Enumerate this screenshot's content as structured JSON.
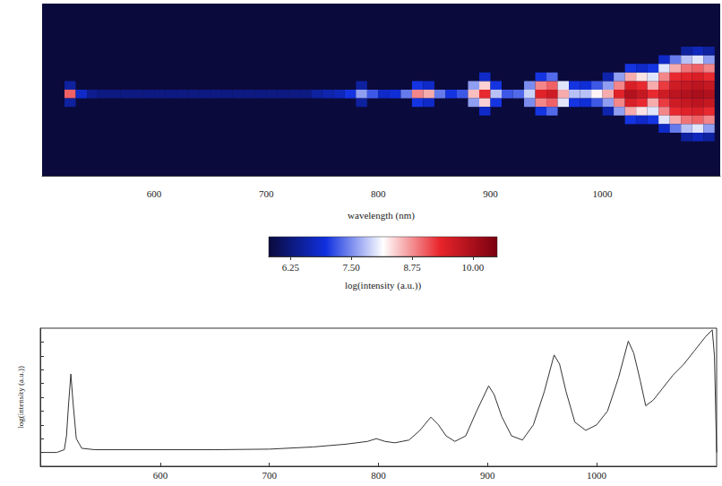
{
  "chart_data": [
    {
      "type": "heatmap",
      "x_label": "wavelength (nm)",
      "xlim": [
        500,
        1105
      ],
      "xticks": [
        600,
        700,
        800,
        900,
        1000
      ],
      "ylim": [
        0,
        20
      ],
      "tick_labels": "x",
      "colorbar_label": "log(intensity (a.u.))",
      "colorbar_range": [
        5.8,
        10.5
      ],
      "colorbar_ticks": [
        6.25,
        {
          "value": 7.5,
          "label": "7.50"
        },
        8.75,
        {
          "value": 10,
          "label": "10.00"
        }
      ],
      "cells": [
        [
          525,
          9.5,
          9.0
        ],
        [
          535,
          9.5,
          6.8
        ],
        [
          545,
          9.5,
          6.4
        ],
        [
          555,
          9.5,
          6.3
        ],
        [
          565,
          9.5,
          6.3
        ],
        [
          575,
          9.5,
          6.3
        ],
        [
          585,
          9.5,
          6.3
        ],
        [
          595,
          9.5,
          6.3
        ],
        [
          605,
          9.5,
          6.3
        ],
        [
          615,
          9.5,
          6.3
        ],
        [
          625,
          9.5,
          6.3
        ],
        [
          635,
          9.5,
          6.3
        ],
        [
          645,
          9.5,
          6.3
        ],
        [
          655,
          9.5,
          6.3
        ],
        [
          665,
          9.5,
          6.3
        ],
        [
          675,
          9.5,
          6.3
        ],
        [
          685,
          9.5,
          6.3
        ],
        [
          695,
          9.5,
          6.3
        ],
        [
          705,
          9.5,
          6.3
        ],
        [
          715,
          9.5,
          6.3
        ],
        [
          725,
          9.5,
          6.3
        ],
        [
          735,
          9.5,
          6.3
        ],
        [
          745,
          9.5,
          6.5
        ],
        [
          755,
          9.5,
          6.6
        ],
        [
          765,
          9.5,
          6.7
        ],
        [
          775,
          9.5,
          7.0
        ],
        [
          785,
          9.5,
          7.6
        ],
        [
          795,
          9.5,
          7.2
        ],
        [
          805,
          9.5,
          6.8
        ],
        [
          815,
          9.5,
          6.9
        ],
        [
          825,
          9.5,
          7.4
        ],
        [
          835,
          9.5,
          8.8
        ],
        [
          845,
          9.5,
          8.6
        ],
        [
          855,
          9.5,
          7.4
        ],
        [
          865,
          9.5,
          7.0
        ],
        [
          875,
          9.5,
          7.2
        ],
        [
          885,
          9.5,
          8.5
        ],
        [
          895,
          9.5,
          9.3
        ],
        [
          905,
          9.5,
          7.8
        ],
        [
          915,
          9.5,
          7.2
        ],
        [
          925,
          9.5,
          7.3
        ],
        [
          935,
          9.5,
          7.9
        ],
        [
          945,
          9.5,
          9.4
        ],
        [
          955,
          9.5,
          9.6
        ],
        [
          965,
          9.5,
          8.6
        ],
        [
          975,
          9.5,
          7.8
        ],
        [
          985,
          9.5,
          7.8
        ],
        [
          995,
          9.5,
          8.2
        ],
        [
          1005,
          9.5,
          8.6
        ],
        [
          1015,
          9.5,
          9.4
        ],
        [
          1025,
          9.5,
          9.9
        ],
        [
          1035,
          9.5,
          9.7
        ],
        [
          1045,
          9.5,
          9.3
        ],
        [
          1055,
          9.5,
          9.6
        ],
        [
          1065,
          9.5,
          9.8
        ],
        [
          1075,
          9.5,
          9.9
        ],
        [
          1085,
          9.5,
          10.0
        ],
        [
          1095,
          9.5,
          9.9
        ],
        [
          525,
          8.5,
          6.5
        ],
        [
          785,
          8.5,
          6.5
        ],
        [
          835,
          8.5,
          7.0
        ],
        [
          845,
          8.5,
          6.8
        ],
        [
          885,
          8.5,
          7.6
        ],
        [
          895,
          8.5,
          8.4
        ],
        [
          905,
          8.5,
          7.0
        ],
        [
          935,
          8.5,
          7.5
        ],
        [
          945,
          8.5,
          8.8
        ],
        [
          955,
          8.5,
          9.0
        ],
        [
          965,
          8.5,
          8.0
        ],
        [
          975,
          8.5,
          7.0
        ],
        [
          985,
          8.5,
          6.9
        ],
        [
          995,
          8.5,
          7.2
        ],
        [
          1005,
          8.5,
          7.6
        ],
        [
          1015,
          8.5,
          8.8
        ],
        [
          1025,
          8.5,
          9.5
        ],
        [
          1035,
          8.5,
          9.3
        ],
        [
          1045,
          8.5,
          8.6
        ],
        [
          1055,
          8.5,
          9.2
        ],
        [
          1065,
          8.5,
          9.6
        ],
        [
          1075,
          8.5,
          9.7
        ],
        [
          1085,
          8.5,
          9.8
        ],
        [
          1095,
          8.5,
          9.7
        ],
        [
          525,
          10.5,
          6.5
        ],
        [
          785,
          10.5,
          6.5
        ],
        [
          835,
          10.5,
          7.0
        ],
        [
          845,
          10.5,
          6.8
        ],
        [
          885,
          10.5,
          7.6
        ],
        [
          895,
          10.5,
          8.4
        ],
        [
          905,
          10.5,
          7.0
        ],
        [
          935,
          10.5,
          7.5
        ],
        [
          945,
          10.5,
          8.8
        ],
        [
          955,
          10.5,
          9.0
        ],
        [
          965,
          10.5,
          8.0
        ],
        [
          975,
          10.5,
          7.0
        ],
        [
          985,
          10.5,
          6.9
        ],
        [
          995,
          10.5,
          7.2
        ],
        [
          1005,
          10.5,
          7.6
        ],
        [
          1015,
          10.5,
          8.8
        ],
        [
          1025,
          10.5,
          9.5
        ],
        [
          1035,
          10.5,
          9.3
        ],
        [
          1045,
          10.5,
          8.6
        ],
        [
          1055,
          10.5,
          9.2
        ],
        [
          1065,
          10.5,
          9.6
        ],
        [
          1075,
          10.5,
          9.7
        ],
        [
          1085,
          10.5,
          9.8
        ],
        [
          1095,
          10.5,
          9.7
        ],
        [
          895,
          7.5,
          6.8
        ],
        [
          945,
          7.5,
          7.0
        ],
        [
          955,
          7.5,
          7.3
        ],
        [
          1005,
          7.5,
          6.6
        ],
        [
          1015,
          7.5,
          7.6
        ],
        [
          1025,
          7.5,
          8.6
        ],
        [
          1035,
          7.5,
          8.3
        ],
        [
          1045,
          7.5,
          8.0
        ],
        [
          1055,
          7.5,
          8.8
        ],
        [
          1065,
          7.5,
          9.3
        ],
        [
          1075,
          7.5,
          9.4
        ],
        [
          1085,
          7.5,
          9.5
        ],
        [
          1095,
          7.5,
          9.3
        ],
        [
          895,
          11.5,
          6.8
        ],
        [
          945,
          11.5,
          7.0
        ],
        [
          955,
          11.5,
          7.3
        ],
        [
          1005,
          11.5,
          6.6
        ],
        [
          1015,
          11.5,
          7.6
        ],
        [
          1025,
          11.5,
          8.6
        ],
        [
          1035,
          11.5,
          8.3
        ],
        [
          1045,
          11.5,
          8.0
        ],
        [
          1055,
          11.5,
          8.8
        ],
        [
          1065,
          11.5,
          9.3
        ],
        [
          1075,
          11.5,
          9.4
        ],
        [
          1085,
          11.5,
          9.5
        ],
        [
          1095,
          11.5,
          9.3
        ],
        [
          1025,
          6.5,
          7.0
        ],
        [
          1035,
          6.5,
          6.8
        ],
        [
          1045,
          6.5,
          7.0
        ],
        [
          1055,
          6.5,
          8.0
        ],
        [
          1065,
          6.5,
          8.6
        ],
        [
          1075,
          6.5,
          8.9
        ],
        [
          1085,
          6.5,
          9.0
        ],
        [
          1095,
          6.5,
          8.8
        ],
        [
          1025,
          12.5,
          7.0
        ],
        [
          1035,
          12.5,
          6.8
        ],
        [
          1045,
          12.5,
          7.0
        ],
        [
          1055,
          12.5,
          8.0
        ],
        [
          1065,
          12.5,
          8.6
        ],
        [
          1075,
          12.5,
          8.9
        ],
        [
          1085,
          12.5,
          9.0
        ],
        [
          1095,
          12.5,
          8.8
        ],
        [
          1055,
          5.5,
          6.8
        ],
        [
          1065,
          5.5,
          7.4
        ],
        [
          1075,
          5.5,
          7.8
        ],
        [
          1085,
          5.5,
          8.0
        ],
        [
          1095,
          5.5,
          7.6
        ],
        [
          1055,
          13.5,
          6.8
        ],
        [
          1065,
          13.5,
          7.4
        ],
        [
          1075,
          13.5,
          7.8
        ],
        [
          1085,
          13.5,
          8.0
        ],
        [
          1095,
          13.5,
          7.6
        ],
        [
          1075,
          4.5,
          6.5
        ],
        [
          1085,
          4.5,
          6.7
        ],
        [
          1095,
          4.5,
          6.5
        ],
        [
          1075,
          14.5,
          6.5
        ],
        [
          1085,
          14.5,
          6.7
        ],
        [
          1095,
          14.5,
          6.5
        ]
      ]
    },
    {
      "type": "line",
      "y_label": "log(intensity (a.u.))",
      "color": "#333333",
      "xlim": [
        490,
        1110
      ],
      "xticks": [
        600,
        700,
        800,
        900,
        1000
      ],
      "ylim": [
        5.5,
        10.5
      ],
      "yticks": [
        6,
        6.5,
        7,
        7.5,
        8,
        8.5,
        9,
        9.5,
        10
      ],
      "tick_labels": "x",
      "x": [
        490,
        505,
        512,
        514,
        516,
        518,
        520,
        523,
        528,
        540,
        600,
        650,
        700,
        740,
        770,
        790,
        798,
        806,
        815,
        828,
        838,
        848,
        855,
        862,
        870,
        880,
        890,
        901,
        906,
        913,
        922,
        932,
        942,
        952,
        961,
        966,
        972,
        980,
        990,
        1000,
        1010,
        1020,
        1029,
        1034,
        1040,
        1045,
        1052,
        1060,
        1070,
        1080,
        1090,
        1100,
        1106,
        1108,
        1110
      ],
      "values": [
        6.0,
        6.0,
        6.1,
        6.6,
        7.8,
        8.84,
        7.8,
        6.5,
        6.15,
        6.1,
        6.1,
        6.1,
        6.12,
        6.2,
        6.3,
        6.4,
        6.5,
        6.4,
        6.35,
        6.45,
        6.8,
        7.28,
        7.0,
        6.6,
        6.4,
        6.6,
        7.5,
        8.41,
        8.1,
        7.3,
        6.6,
        6.45,
        7.0,
        8.2,
        9.53,
        9.2,
        8.2,
        7.1,
        6.8,
        7.0,
        7.5,
        8.7,
        10.03,
        9.6,
        8.6,
        7.69,
        7.9,
        8.3,
        8.8,
        9.2,
        9.7,
        10.2,
        10.44,
        9.5,
        6.0
      ]
    }
  ]
}
